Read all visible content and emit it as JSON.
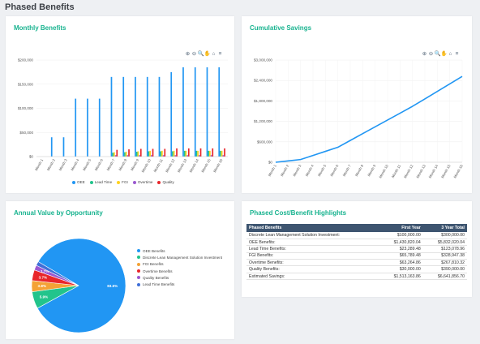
{
  "page": {
    "title": "Phased Benefits"
  },
  "cards": {
    "monthly": {
      "title": "Monthly Benefits"
    },
    "cumulative": {
      "title": "Cumulative Savings"
    },
    "annual": {
      "title": "Annual Value by Opportunity"
    },
    "highlights": {
      "title": "Phased Cost/Benefit Highlights"
    }
  },
  "toolbar_icons": [
    "zoom-in-icon",
    "zoom-out-icon",
    "magnify-icon",
    "pan-hand-icon",
    "home-icon",
    "menu-icon"
  ],
  "toolbar_glyphs": [
    "⊕",
    "⊖",
    "🔍",
    "✋",
    "⌂",
    "≡"
  ],
  "colors": {
    "accent": "#18b38f",
    "oee": "#2196f3",
    "lead_time": "#22c48c",
    "fgi": "#ffd21f",
    "overtime": "#9b59d0",
    "quality": "#e8262b",
    "table_header": "#3e5570"
  },
  "chart_data": [
    {
      "type": "bar",
      "title": "Monthly Benefits",
      "categories": [
        "Month 1",
        "Month 2",
        "Month 3",
        "Month 4",
        "Month 5",
        "Month 6",
        "Month 7",
        "Month 8",
        "Month 9",
        "Month 10",
        "Month 11",
        "Month 12",
        "Month 13",
        "Month 14",
        "Month 15",
        "Month 16"
      ],
      "y_ticks": [
        "$0",
        "$50,000",
        "$100,000",
        "$150,000",
        "$200,000"
      ],
      "ylim": [
        0,
        200000
      ],
      "series": [
        {
          "name": "OEE",
          "color": "#2196f3",
          "values": [
            0,
            40000,
            40000,
            120000,
            120000,
            120000,
            165000,
            165000,
            165000,
            165000,
            165000,
            175000,
            185000,
            185000,
            185000,
            185000
          ]
        },
        {
          "name": "Lead Time",
          "color": "#22c48c",
          "values": [
            0,
            0,
            0,
            0,
            0,
            0,
            8000,
            9000,
            10000,
            11000,
            11000,
            11000,
            12000,
            12000,
            12000,
            12000
          ]
        },
        {
          "name": "FGI",
          "color": "#ffd21f",
          "values": [
            0,
            0,
            0,
            0,
            0,
            0,
            9000,
            10000,
            11000,
            12000,
            12000,
            12000,
            12000,
            12000,
            12000,
            12000
          ]
        },
        {
          "name": "Overtime",
          "color": "#9b59d0",
          "values": [
            0,
            0,
            0,
            0,
            0,
            0,
            3000,
            3000,
            3000,
            3000,
            3000,
            3000,
            3000,
            3000,
            3000,
            3000
          ]
        },
        {
          "name": "Quality",
          "color": "#e8262b",
          "values": [
            0,
            0,
            0,
            0,
            0,
            0,
            14000,
            15000,
            16000,
            16000,
            16000,
            17000,
            17000,
            17000,
            17000,
            17000
          ]
        }
      ]
    },
    {
      "type": "line",
      "title": "Cumulative Savings",
      "categories": [
        "Month 1",
        "Month 2",
        "Month 3",
        "Month 4",
        "Month 5",
        "Month 6",
        "Month 7",
        "Month 8",
        "Month 9",
        "Month 10",
        "Month 11",
        "Month 12",
        "Month 13",
        "Month 14",
        "Month 15",
        "Month 16"
      ],
      "y_ticks": [
        "$0",
        "$600,000",
        "$1,200,000",
        "$1,800,000",
        "$2,400,000",
        "$3,000,000"
      ],
      "ylim": [
        0,
        3000000
      ],
      "series": [
        {
          "name": "Cumulative Savings",
          "color": "#2196f3",
          "values": [
            0,
            40000,
            80000,
            200000,
            320000,
            440000,
            640000,
            840000,
            1040000,
            1240000,
            1440000,
            1640000,
            1860000,
            2080000,
            2300000,
            2520000
          ]
        }
      ]
    },
    {
      "type": "pie",
      "title": "Annual Value by Opportunity",
      "slices": [
        {
          "name": "OEE Benefits",
          "value": 83.5,
          "label": "83.5%",
          "color": "#2196f3"
        },
        {
          "name": "Discrete Lean Management Solution Investment",
          "value": 5.9,
          "label": "5.9%",
          "color": "#22c48c"
        },
        {
          "name": "FGI Benefits",
          "value": 3.8,
          "label": "3.8%",
          "color": "#f4a236"
        },
        {
          "name": "Overtime Benefits",
          "value": 3.7,
          "label": "3.7%",
          "color": "#e8262b"
        },
        {
          "name": "Quality Benefits",
          "value": 1.7,
          "label": "1.7%",
          "color": "#9b59d0"
        },
        {
          "name": "Lead Time Benefits",
          "value": 1.4,
          "label": "",
          "color": "#3f6fd8"
        }
      ]
    }
  ],
  "highlights_table": {
    "headers": [
      "Phased Benefits",
      "First Year",
      "3 Year Total"
    ],
    "rows": [
      [
        "Discrete Lean Management Solution Investment:",
        "$100,000.00",
        "$300,000.00"
      ],
      [
        "OEE Benefits:",
        "$1,430,820.04",
        "$5,832,020.04"
      ],
      [
        "Lead Time Benefits:",
        "$23,289.48",
        "$123,078.96"
      ],
      [
        "FGI Benefits:",
        "$65,789.48",
        "$328,947.38"
      ],
      [
        "Overtime Benefits:",
        "$63,264.86",
        "$267,810.32"
      ],
      [
        "Quality Benefits:",
        "$30,000.00",
        "$390,000.00"
      ],
      [
        "Estimated Savings:",
        "$1,513,163.86",
        "$6,641,856.70"
      ]
    ]
  }
}
